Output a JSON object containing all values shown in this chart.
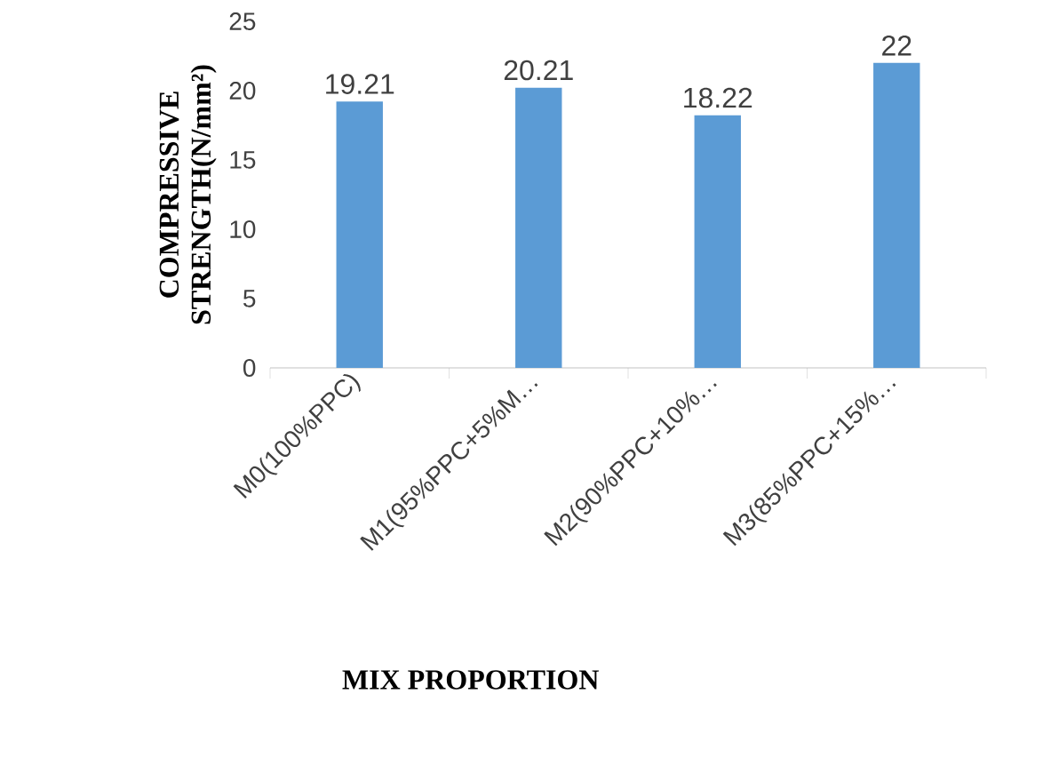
{
  "chart_data": {
    "type": "bar",
    "xlabel": "MIX PROPORTION",
    "ylabel": "COMPRESSIVE STRENGTH(N/mm²)",
    "categories": [
      "M0(100%PPC)",
      "M1(95%PPC+5%M…",
      "M2(90%PPC+10%…",
      "M3(85%PPC+15%…"
    ],
    "values": [
      19.21,
      20.21,
      18.22,
      22
    ],
    "color": "#5b9bd5",
    "ylim": [
      0,
      25
    ],
    "yticks": [
      0,
      5,
      10,
      15,
      20,
      25
    ],
    "data_labels": true,
    "grid": false
  }
}
